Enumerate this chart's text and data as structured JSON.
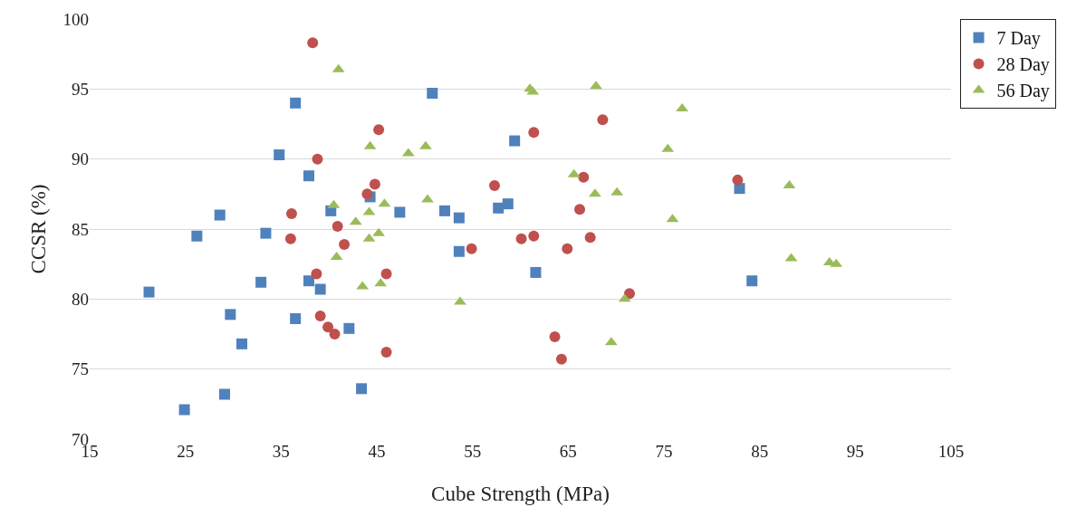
{
  "chart_data": {
    "type": "scatter",
    "xlabel": "Cube Strength (MPa)",
    "ylabel": "CCSR (%)",
    "xlim": [
      15,
      105
    ],
    "xticks": [
      15,
      25,
      35,
      45,
      55,
      65,
      75,
      85,
      95,
      105
    ],
    "ylim": [
      70,
      100
    ],
    "yticks": [
      70,
      75,
      80,
      85,
      90,
      95,
      100
    ],
    "grid": "y",
    "legend": "top right",
    "series": [
      {
        "name": "7 Day",
        "color": "#4f81bd",
        "marker": "square",
        "x": [
          21.2,
          24.9,
          26.2,
          28.6,
          29.1,
          29.7,
          30.9,
          32.9,
          33.4,
          34.8,
          36.5,
          36.5,
          37.9,
          37.9,
          39.1,
          40.2,
          42.1,
          43.4,
          44.3,
          47.4,
          50.8,
          52.1,
          53.6,
          53.6,
          57.7,
          58.7,
          59.4,
          61.6,
          82.9,
          84.2
        ],
        "values": [
          80.5,
          72.1,
          84.5,
          86.0,
          73.2,
          78.9,
          76.8,
          81.2,
          84.7,
          90.3,
          94.0,
          78.6,
          88.8,
          81.3,
          80.7,
          86.3,
          77.9,
          73.6,
          87.3,
          86.2,
          94.7,
          86.3,
          85.8,
          83.4,
          86.5,
          86.8,
          91.3,
          81.9,
          87.9,
          81.3
        ]
      },
      {
        "name": "28 Day",
        "color": "#c0504d",
        "marker": "circle",
        "x": [
          38.3,
          38.8,
          36.1,
          36.0,
          40.9,
          41.6,
          38.7,
          39.1,
          39.9,
          40.6,
          44.0,
          44.8,
          45.2,
          46.0,
          46.0,
          54.9,
          57.3,
          60.1,
          61.4,
          61.4,
          63.6,
          64.3,
          64.9,
          66.2,
          66.6,
          67.3,
          68.6,
          71.4,
          82.7
        ],
        "values": [
          98.3,
          90.0,
          86.1,
          84.3,
          85.2,
          83.9,
          81.8,
          78.8,
          78.0,
          77.5,
          87.5,
          88.2,
          92.1,
          81.8,
          76.2,
          83.6,
          88.1,
          84.3,
          84.5,
          91.9,
          77.3,
          75.7,
          83.6,
          86.4,
          88.7,
          84.4,
          92.8,
          80.4,
          88.5
        ]
      },
      {
        "name": "56 Day",
        "color": "#9bbb59",
        "marker": "triangle",
        "x": [
          41.0,
          40.5,
          40.8,
          42.8,
          43.5,
          44.3,
          44.2,
          44.2,
          45.2,
          45.8,
          45.4,
          48.3,
          50.1,
          50.3,
          53.7,
          61.0,
          61.3,
          65.6,
          67.8,
          67.9,
          70.1,
          70.9,
          69.5,
          76.9,
          75.4,
          75.9,
          88.1,
          88.3,
          92.3,
          93.0
        ],
        "values": [
          96.4,
          86.7,
          83.0,
          85.5,
          80.9,
          90.9,
          86.2,
          84.3,
          84.7,
          86.8,
          81.1,
          90.4,
          90.9,
          87.1,
          79.8,
          95.0,
          94.8,
          88.9,
          87.5,
          95.2,
          87.6,
          80.0,
          76.9,
          93.6,
          90.7,
          85.7,
          88.1,
          82.9,
          82.6,
          82.5
        ]
      }
    ]
  }
}
